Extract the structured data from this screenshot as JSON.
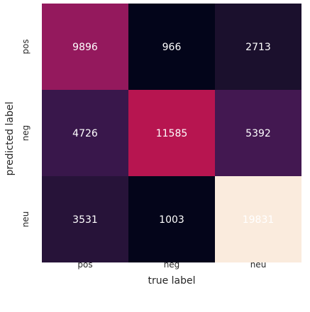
{
  "chart_data": {
    "type": "heatmap",
    "title": "",
    "xlabel": "true label",
    "ylabel": "predicted label",
    "x_categories": [
      "pos",
      "neg",
      "neu"
    ],
    "y_categories": [
      "pos",
      "neg",
      "neu"
    ],
    "matrix": [
      [
        9896,
        966,
        2713
      ],
      [
        4726,
        11585,
        5392
      ],
      [
        3531,
        1003,
        19831
      ]
    ],
    "colorbar": false,
    "colormap": "rocket",
    "annotation_color": "#ffffff",
    "grid": false,
    "background": "#eaeaf2"
  }
}
